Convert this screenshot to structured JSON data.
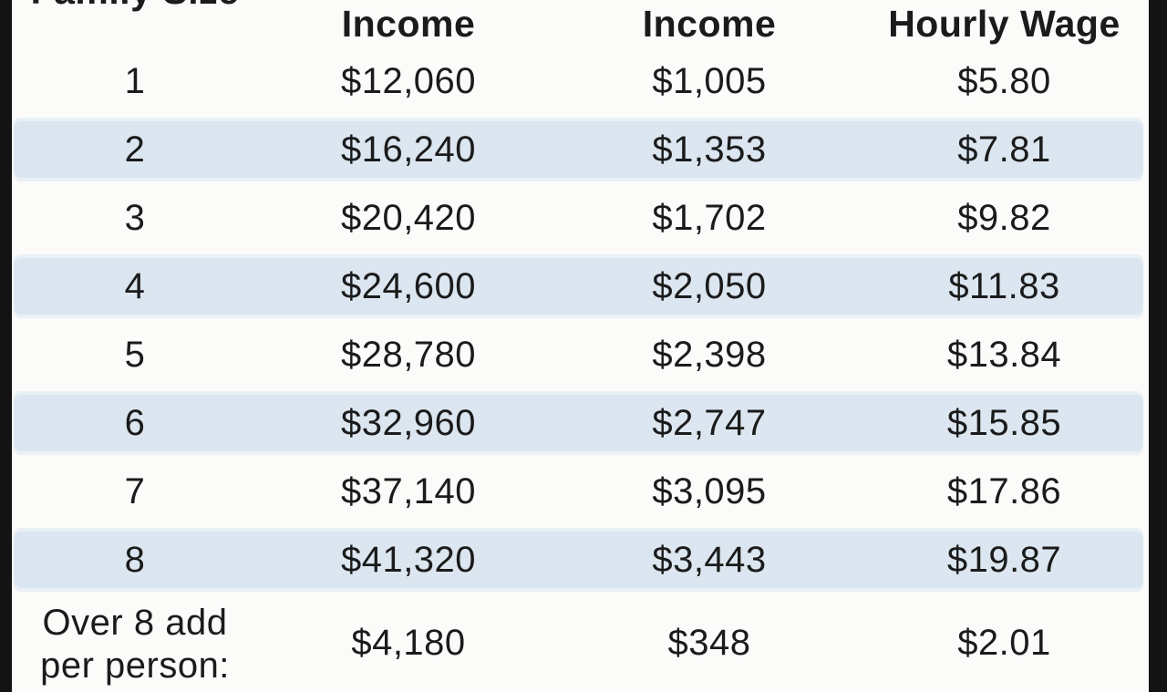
{
  "table": {
    "columns": [
      "Family Size",
      "Income",
      "Income",
      "Hourly Wage"
    ],
    "rows": [
      [
        "1",
        "$12,060",
        "$1,005",
        "$5.80"
      ],
      [
        "2",
        "$16,240",
        "$1,353",
        "$7.81"
      ],
      [
        "3",
        "$20,420",
        "$1,702",
        "$9.82"
      ],
      [
        "4",
        "$24,600",
        "$2,050",
        "$11.83"
      ],
      [
        "5",
        "$28,780",
        "$2,398",
        "$13.84"
      ],
      [
        "6",
        "$32,960",
        "$2,747",
        "$15.85"
      ],
      [
        "7",
        "$37,140",
        "$3,095",
        "$17.86"
      ],
      [
        "8",
        "$41,320",
        "$3,443",
        "$19.87"
      ],
      [
        "Over 8 add per person:",
        "$4,180",
        "$348",
        "$2.01"
      ]
    ]
  },
  "colors": {
    "stripe_blue": "#dbe6f0",
    "row_white": "#fbfbf9",
    "border_black": "#131313",
    "text": "#1b1b1b"
  }
}
